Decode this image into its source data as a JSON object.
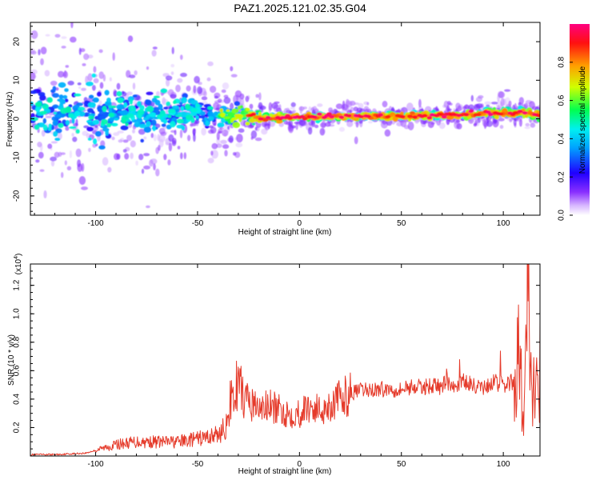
{
  "page": {
    "title": "PAZ1.2025.121.02.35.G04"
  },
  "colors": {
    "snr_line": "#e53a2a",
    "axes": "#000000"
  },
  "chart_data": [
    {
      "type": "heatmap",
      "xlabel": "Height of straight line (km)",
      "ylabel": "Frequency (Hz)",
      "xlim": [
        -132,
        118
      ],
      "ylim": [
        -25,
        25
      ],
      "x_ticks": [
        -100,
        -50,
        0,
        50,
        100
      ],
      "y_ticks": [
        -20,
        -10,
        0,
        10,
        20
      ],
      "colorbar": {
        "label": "Normalized spectral amplitude",
        "range": [
          0,
          1
        ],
        "ticks": [
          "0.0",
          "0.2",
          "0.4",
          "0.6",
          "0.8"
        ],
        "colors": [
          "#ffffff",
          "#b070ff",
          "#4a00e0",
          "#1040ff",
          "#00e0ff",
          "#00ff40",
          "#ffff00",
          "#ff7000",
          "#ff0000",
          "#ff0080"
        ]
      },
      "ridge": {
        "x": [
          -130,
          -110,
          -90,
          -70,
          -55,
          -40,
          -25,
          -15,
          0,
          20,
          40,
          60,
          80,
          95,
          110,
          118
        ],
        "freq_hz": [
          1.5,
          1.8,
          1.6,
          1.2,
          2.0,
          0.5,
          0.8,
          0.3,
          0.5,
          0.6,
          0.7,
          0.8,
          1.0,
          1.6,
          1.5,
          0.8
        ],
        "spread_hz": [
          9,
          8,
          7,
          6,
          5,
          3.5,
          2.5,
          1.5,
          1.2,
          1,
          1,
          1,
          1,
          1.2,
          1.5,
          1.5
        ]
      }
    },
    {
      "type": "line",
      "xlabel": "Height of straight line (km)",
      "ylabel": "SNR (10 * v/v)",
      "y_multiplier": "(x10^4)",
      "xlim": [
        -132,
        118
      ],
      "ylim": [
        0,
        1.35
      ],
      "x_ticks": [
        -100,
        -50,
        0,
        50,
        100
      ],
      "y_ticks": [
        0.2,
        0.4,
        0.6,
        0.8,
        1.0,
        1.2
      ],
      "y_tick_labels": [
        "0.2",
        "0.4",
        "0.6",
        "0.8",
        "1.0",
        "1.2"
      ],
      "series": [
        {
          "x": [
            -132,
            -120,
            -105,
            -100,
            -90,
            -80,
            -70,
            -60,
            -50,
            -40,
            -35,
            -32,
            -30,
            -28,
            -25,
            -20,
            -15,
            -10,
            -5,
            0,
            5,
            10,
            15,
            20,
            25,
            30,
            40,
            50,
            55,
            60,
            65,
            70,
            72,
            74,
            80,
            85,
            90,
            95,
            100,
            105,
            108,
            110,
            111,
            112,
            113,
            115,
            118
          ],
          "y": [
            0.01,
            0.01,
            0.02,
            0.04,
            0.08,
            0.1,
            0.1,
            0.1,
            0.12,
            0.15,
            0.22,
            0.45,
            0.5,
            0.42,
            0.38,
            0.33,
            0.35,
            0.32,
            0.3,
            0.3,
            0.35,
            0.32,
            0.36,
            0.4,
            0.44,
            0.46,
            0.47,
            0.47,
            0.49,
            0.48,
            0.5,
            0.48,
            0.56,
            0.48,
            0.52,
            0.5,
            0.47,
            0.52,
            0.5,
            0.52,
            0.75,
            0.1,
            0.55,
            1.33,
            0.48,
            0.5,
            0.5
          ]
        }
      ]
    }
  ]
}
